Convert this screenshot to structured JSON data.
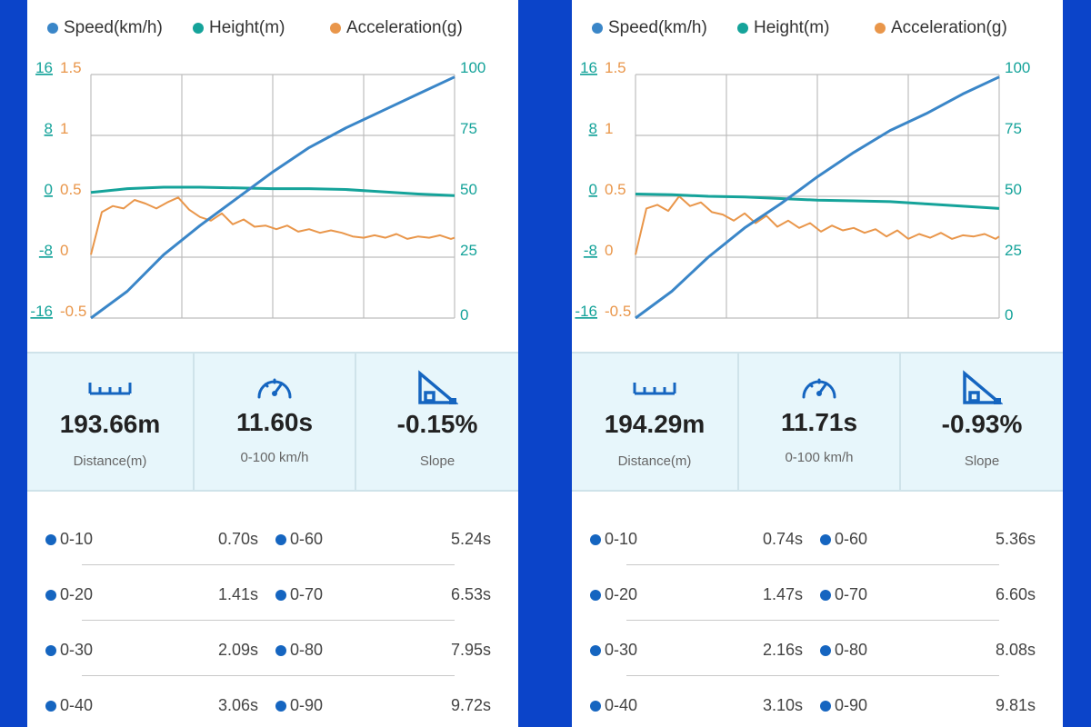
{
  "colors": {
    "speed": "#3a86c8",
    "height": "#15a39a",
    "acceleration": "#e9964a",
    "accent": "#1565c0",
    "background": "#0b44c9"
  },
  "legend": {
    "speed": "Speed(km/h)",
    "height": "Height(m)",
    "acceleration": "Acceleration(g)"
  },
  "panels": [
    {
      "chart_data": {
        "type": "line",
        "series": [
          {
            "name": "Speed(km/h)",
            "axis": "right",
            "x": [
              0,
              1,
              2,
              3,
              4,
              5,
              6,
              7,
              8,
              9,
              10
            ],
            "values": [
              0,
              11,
              26,
              38,
              49,
              60,
              70,
              78,
              85,
              92,
              99
            ]
          },
          {
            "name": "Height(m)",
            "axis": "left",
            "x": [
              0,
              1,
              2,
              3,
              4,
              5,
              6,
              7,
              8,
              9,
              10
            ],
            "values": [
              0.5,
              1.0,
              1.2,
              1.2,
              1.1,
              1.0,
              1.0,
              0.9,
              0.6,
              0.3,
              0.1
            ]
          },
          {
            "name": "Acceleration(g)",
            "axis": "left2",
            "x": [
              0,
              0.3,
              0.6,
              0.9,
              1.2,
              1.5,
              1.8,
              2.1,
              2.4,
              2.7,
              3.0,
              3.3,
              3.6,
              3.9,
              4.2,
              4.5,
              4.8,
              5.1,
              5.4,
              5.7,
              6.0,
              6.3,
              6.6,
              6.9,
              7.2,
              7.5,
              7.8,
              8.1,
              8.4,
              8.7,
              9.0,
              9.3,
              9.6,
              9.9,
              10
            ],
            "values": [
              0.02,
              0.37,
              0.42,
              0.4,
              0.47,
              0.44,
              0.4,
              0.45,
              0.49,
              0.39,
              0.33,
              0.3,
              0.36,
              0.27,
              0.31,
              0.25,
              0.26,
              0.23,
              0.26,
              0.21,
              0.23,
              0.2,
              0.22,
              0.2,
              0.17,
              0.16,
              0.18,
              0.16,
              0.19,
              0.15,
              0.17,
              0.16,
              0.18,
              0.15,
              0.16
            ]
          }
        ],
        "xlim": [
          0,
          10
        ],
        "left_axis_height": {
          "ticks": [
            "16",
            "8",
            "0",
            "-8",
            "-16"
          ],
          "ylim": [
            -16,
            16
          ]
        },
        "left_axis_acceleration": {
          "ticks": [
            "1.5",
            "1",
            "0.5",
            "0",
            "-0.5"
          ],
          "ylim": [
            -0.5,
            1.5
          ]
        },
        "right_axis_speed": {
          "ticks": [
            "100",
            "75",
            "50",
            "25",
            "0"
          ],
          "ylim": [
            0,
            100
          ]
        },
        "grid": true,
        "legend": "top"
      },
      "stats": {
        "distance": {
          "value": "193.66m",
          "label": "Distance(m)",
          "icon": "ruler-icon"
        },
        "time": {
          "value": "11.60s",
          "label": "0-100 km/h",
          "icon": "speedometer-icon"
        },
        "slope": {
          "value": "-0.15%",
          "label": "Slope",
          "icon": "slope-icon"
        }
      },
      "splits": [
        {
          "a_label": "0-10",
          "a_value": "0.70s",
          "b_label": "0-60",
          "b_value": "5.24s"
        },
        {
          "a_label": "0-20",
          "a_value": "1.41s",
          "b_label": "0-70",
          "b_value": "6.53s"
        },
        {
          "a_label": "0-30",
          "a_value": "2.09s",
          "b_label": "0-80",
          "b_value": "7.95s"
        },
        {
          "a_label": "0-40",
          "a_value": "3.06s",
          "b_label": "0-90",
          "b_value": "9.72s"
        }
      ]
    },
    {
      "chart_data": {
        "type": "line",
        "series": [
          {
            "name": "Speed(km/h)",
            "axis": "right",
            "x": [
              0,
              1,
              2,
              3,
              4,
              5,
              6,
              7,
              8,
              9,
              10
            ],
            "values": [
              0,
              11,
              25,
              37,
              47,
              58,
              68,
              77,
              84,
              92,
              99
            ]
          },
          {
            "name": "Height(m)",
            "axis": "left",
            "x": [
              0,
              1,
              2,
              3,
              4,
              5,
              6,
              7,
              8,
              9,
              10
            ],
            "values": [
              0.3,
              0.2,
              0.0,
              -0.1,
              -0.3,
              -0.5,
              -0.6,
              -0.7,
              -1.0,
              -1.3,
              -1.6
            ]
          },
          {
            "name": "Acceleration(g)",
            "axis": "left2",
            "x": [
              0,
              0.3,
              0.6,
              0.9,
              1.2,
              1.5,
              1.8,
              2.1,
              2.4,
              2.7,
              3.0,
              3.3,
              3.6,
              3.9,
              4.2,
              4.5,
              4.8,
              5.1,
              5.4,
              5.7,
              6.0,
              6.3,
              6.6,
              6.9,
              7.2,
              7.5,
              7.8,
              8.1,
              8.4,
              8.7,
              9.0,
              9.3,
              9.6,
              9.9,
              10
            ],
            "values": [
              0.02,
              0.4,
              0.43,
              0.38,
              0.5,
              0.42,
              0.45,
              0.37,
              0.35,
              0.3,
              0.36,
              0.28,
              0.34,
              0.25,
              0.3,
              0.24,
              0.28,
              0.21,
              0.26,
              0.22,
              0.24,
              0.2,
              0.23,
              0.17,
              0.22,
              0.15,
              0.19,
              0.16,
              0.2,
              0.15,
              0.18,
              0.17,
              0.19,
              0.15,
              0.17
            ]
          }
        ],
        "xlim": [
          0,
          10
        ],
        "left_axis_height": {
          "ticks": [
            "16",
            "8",
            "0",
            "-8",
            "-16"
          ],
          "ylim": [
            -16,
            16
          ]
        },
        "left_axis_acceleration": {
          "ticks": [
            "1.5",
            "1",
            "0.5",
            "0",
            "-0.5"
          ],
          "ylim": [
            -0.5,
            1.5
          ]
        },
        "right_axis_speed": {
          "ticks": [
            "100",
            "75",
            "50",
            "25",
            "0"
          ],
          "ylim": [
            0,
            100
          ]
        },
        "grid": true,
        "legend": "top"
      },
      "stats": {
        "distance": {
          "value": "194.29m",
          "label": "Distance(m)",
          "icon": "ruler-icon"
        },
        "time": {
          "value": "11.71s",
          "label": "0-100 km/h",
          "icon": "speedometer-icon"
        },
        "slope": {
          "value": "-0.93%",
          "label": "Slope",
          "icon": "slope-icon"
        }
      },
      "splits": [
        {
          "a_label": "0-10",
          "a_value": "0.74s",
          "b_label": "0-60",
          "b_value": "5.36s"
        },
        {
          "a_label": "0-20",
          "a_value": "1.47s",
          "b_label": "0-70",
          "b_value": "6.60s"
        },
        {
          "a_label": "0-30",
          "a_value": "2.16s",
          "b_label": "0-80",
          "b_value": "8.08s"
        },
        {
          "a_label": "0-40",
          "a_value": "3.10s",
          "b_label": "0-90",
          "b_value": "9.81s"
        }
      ]
    }
  ]
}
